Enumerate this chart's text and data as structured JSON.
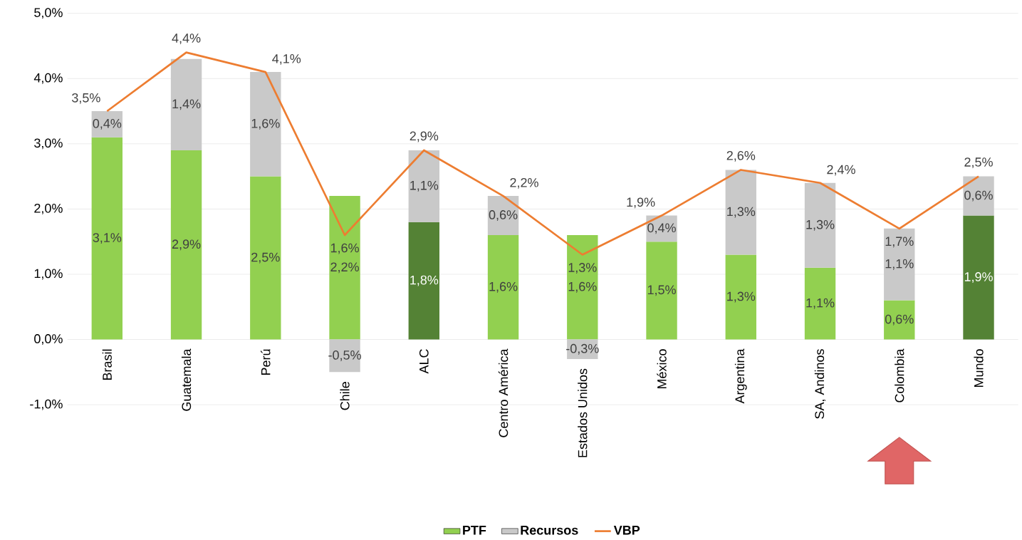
{
  "chart_data": {
    "type": "bar",
    "stacked": true,
    "categories": [
      "Brasil",
      "Guatemala",
      "Perú",
      "Chile",
      "ALC",
      "Centro América",
      "Estados Unidos",
      "México",
      "Argentina",
      "SA, Andinos",
      "Colombia",
      "Mundo"
    ],
    "series": [
      {
        "name": "PTF",
        "type": "bar",
        "color": "#92d050",
        "colors": [
          "#92d050",
          "#92d050",
          "#92d050",
          "#92d050",
          "#548235",
          "#92d050",
          "#92d050",
          "#92d050",
          "#92d050",
          "#92d050",
          "#92d050",
          "#548235"
        ],
        "values": [
          3.1,
          2.9,
          2.5,
          2.2,
          1.8,
          1.6,
          1.6,
          1.5,
          1.3,
          1.1,
          0.6,
          1.9
        ],
        "value_labels": [
          "3,1%",
          "2,9%",
          "2,5%",
          "2,2%",
          "1,8%",
          "1,6%",
          "1,6%",
          "1,5%",
          "1,3%",
          "1,1%",
          "0,6%",
          "1,9%"
        ]
      },
      {
        "name": "Recursos",
        "type": "bar",
        "color": "#c9c9c9",
        "values": [
          0.4,
          1.4,
          1.6,
          -0.5,
          1.1,
          0.6,
          -0.3,
          0.4,
          1.3,
          1.3,
          1.1,
          0.6
        ],
        "value_labels": [
          "0,4%",
          "1,4%",
          "1,6%",
          "-0,5%",
          "1,1%",
          "0,6%",
          "-0,3%",
          "0,4%",
          "1,3%",
          "1,3%",
          "1,1%",
          "0,6%"
        ]
      },
      {
        "name": "VBP",
        "type": "line",
        "color": "#ed7d31",
        "values": [
          3.5,
          4.4,
          4.1,
          1.6,
          2.9,
          2.2,
          1.3,
          1.9,
          2.6,
          2.4,
          1.7,
          2.5
        ],
        "value_labels": [
          "3,5%",
          "4,4%",
          "4,1%",
          "1,6%",
          "2,9%",
          "2,2%",
          "1,3%",
          "1,9%",
          "2,6%",
          "2,4%",
          "1,7%",
          "2,5%"
        ]
      }
    ],
    "ylim": [
      -1,
      5
    ],
    "yticks": [
      {
        "value": -1,
        "label": "-1,0%"
      },
      {
        "value": 0,
        "label": "0,0%"
      },
      {
        "value": 1,
        "label": "1,0%"
      },
      {
        "value": 2,
        "label": "2,0%"
      },
      {
        "value": 3,
        "label": "3,0%"
      },
      {
        "value": 4,
        "label": "4,0%"
      },
      {
        "value": 5,
        "label": "5,0%"
      }
    ],
    "grid": "y",
    "legend": "bottom"
  }
}
